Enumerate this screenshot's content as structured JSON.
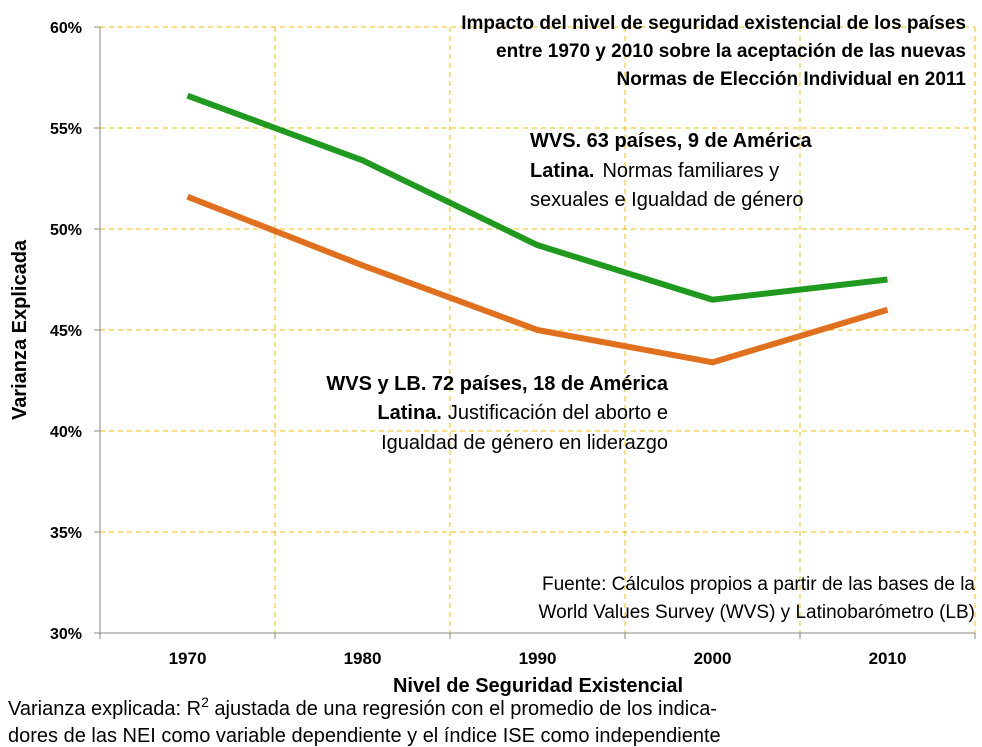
{
  "chart_data": {
    "type": "line",
    "title": [
      "Impacto del nivel de seguridad existencial de los países",
      "entre 1970 y 2010 sobre la aceptación de las nuevas",
      "Normas de Elección Individual en 2011"
    ],
    "x_label": "Nivel de Seguridad Existencial",
    "y_label": "Varianza Explicada",
    "categories": [
      "1970",
      "1980",
      "1990",
      "2000",
      "2010"
    ],
    "series": [
      {
        "color": "#1f9a1f",
        "values": [
          56.6,
          53.4,
          49.2,
          46.5,
          47.5
        ]
      },
      {
        "color": "#e0701e",
        "values": [
          51.6,
          48.2,
          45.0,
          43.4,
          46.0
        ]
      }
    ],
    "ylim": [
      30,
      60
    ],
    "yticks": [
      {
        "value": 30,
        "label": "30%"
      },
      {
        "value": 35,
        "label": "35%"
      },
      {
        "value": 40,
        "label": "40%"
      },
      {
        "value": 45,
        "label": "45%"
      },
      {
        "value": 50,
        "label": "50%"
      },
      {
        "value": 55,
        "label": "55%"
      },
      {
        "value": 60,
        "label": "60%"
      }
    ],
    "grid": true,
    "grid_color": "#f0c000",
    "annotations": [
      {
        "color": "#1f9a1f",
        "lines": [
          [
            "WVS. 63 países, 9 de América"
          ],
          [
            "Latina.",
            "Normas familiares y"
          ],
          [
            "sexuales e Igualdad de género"
          ]
        ]
      },
      {
        "color": "#e0701e",
        "lines": [
          [
            "WVS y LB. 72 países, 18 de América"
          ],
          [
            "Latina.",
            "Justificación del aborto e"
          ],
          [
            "Igualdad de género en liderazgo"
          ]
        ]
      }
    ],
    "source": [
      "Fuente: Cálculos propios a partir de las bases de la",
      "World Values Survey (WVS) y Latinobarómetro (LB)"
    ],
    "note": [
      [
        "Varianza explicada: R",
        "2",
        " ajustada de una regresión con el promedio de los indica-"
      ],
      [
        "dores de las NEI como variable dependiente y el índice ISE como independiente"
      ]
    ]
  }
}
